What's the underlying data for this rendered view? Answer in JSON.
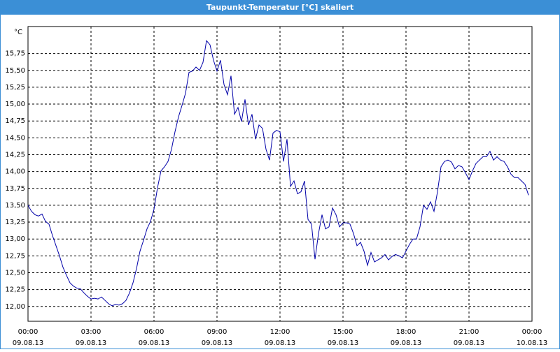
{
  "window_title": "Taupunkt-Temperatur [°C] skaliert",
  "chart_data": {
    "type": "line",
    "y_label": "°C",
    "color": "#0000a8",
    "grid": true,
    "xlim": [
      0,
      1440
    ],
    "ylim": [
      11.78,
      16.15
    ],
    "xticks": [
      {
        "value": 0,
        "label": "00:00",
        "date": "09.08.13"
      },
      {
        "value": 180,
        "label": "03:00",
        "date": "09.08.13"
      },
      {
        "value": 360,
        "label": "06:00",
        "date": "09.08.13"
      },
      {
        "value": 540,
        "label": "09:00",
        "date": "09.08.13"
      },
      {
        "value": 720,
        "label": "12:00",
        "date": "09.08.13"
      },
      {
        "value": 900,
        "label": "15:00",
        "date": "09.08.13"
      },
      {
        "value": 1080,
        "label": "18:00",
        "date": "09.08.13"
      },
      {
        "value": 1260,
        "label": "21:00",
        "date": "09.08.13"
      },
      {
        "value": 1440,
        "label": "00:00",
        "date": "10.08.13"
      }
    ],
    "yticks": [
      {
        "value": 12.0,
        "label": "12,00"
      },
      {
        "value": 12.25,
        "label": "12,25"
      },
      {
        "value": 12.5,
        "label": "12,50"
      },
      {
        "value": 12.75,
        "label": "12,75"
      },
      {
        "value": 13.0,
        "label": "13,00"
      },
      {
        "value": 13.25,
        "label": "13,25"
      },
      {
        "value": 13.5,
        "label": "13,50"
      },
      {
        "value": 13.75,
        "label": "13,75"
      },
      {
        "value": 14.0,
        "label": "14,00"
      },
      {
        "value": 14.25,
        "label": "14,25"
      },
      {
        "value": 14.5,
        "label": "14,50"
      },
      {
        "value": 14.75,
        "label": "14,75"
      },
      {
        "value": 15.0,
        "label": "15,00"
      },
      {
        "value": 15.25,
        "label": "15,25"
      },
      {
        "value": 15.5,
        "label": "15,50"
      },
      {
        "value": 15.75,
        "label": "15,75"
      }
    ],
    "x": [
      0,
      10,
      20,
      30,
      40,
      50,
      60,
      70,
      80,
      90,
      100,
      110,
      120,
      130,
      140,
      150,
      160,
      170,
      180,
      190,
      200,
      210,
      220,
      230,
      240,
      250,
      260,
      270,
      280,
      290,
      300,
      310,
      320,
      330,
      340,
      350,
      360,
      370,
      380,
      390,
      400,
      410,
      420,
      430,
      440,
      450,
      460,
      470,
      480,
      490,
      500,
      510,
      520,
      530,
      540,
      550,
      560,
      570,
      580,
      590,
      600,
      610,
      620,
      630,
      640,
      650,
      660,
      670,
      680,
      690,
      700,
      710,
      720,
      730,
      740,
      750,
      760,
      770,
      780,
      790,
      800,
      810,
      820,
      830,
      840,
      850,
      860,
      870,
      880,
      890,
      900,
      910,
      920,
      930,
      940,
      950,
      960,
      970,
      980,
      990,
      1000,
      1010,
      1020,
      1030,
      1040,
      1050,
      1060,
      1070,
      1080,
      1090,
      1100,
      1110,
      1120,
      1130,
      1140,
      1150,
      1160,
      1170,
      1180,
      1190,
      1200,
      1210,
      1220,
      1230,
      1240,
      1250,
      1260,
      1270,
      1280,
      1290,
      1300,
      1310,
      1320,
      1330,
      1340,
      1350,
      1360,
      1370,
      1380,
      1390,
      1400,
      1410,
      1420,
      1430
    ],
    "values": [
      13.5,
      13.41,
      13.36,
      13.34,
      13.37,
      13.26,
      13.22,
      13.05,
      12.9,
      12.75,
      12.58,
      12.46,
      12.35,
      12.3,
      12.27,
      12.26,
      12.2,
      12.15,
      12.11,
      12.12,
      12.11,
      12.14,
      12.09,
      12.04,
      12.01,
      12.03,
      12.02,
      12.04,
      12.09,
      12.2,
      12.35,
      12.56,
      12.82,
      12.98,
      13.15,
      13.26,
      13.44,
      13.76,
      14.01,
      14.07,
      14.15,
      14.33,
      14.59,
      14.81,
      14.98,
      15.16,
      15.47,
      15.49,
      15.55,
      15.5,
      15.62,
      15.94,
      15.88,
      15.65,
      15.49,
      15.65,
      15.29,
      15.14,
      15.42,
      14.85,
      14.95,
      14.74,
      15.07,
      14.69,
      14.85,
      14.48,
      14.69,
      14.64,
      14.33,
      14.17,
      14.57,
      14.61,
      14.59,
      14.15,
      14.48,
      13.78,
      13.86,
      13.67,
      13.7,
      13.86,
      13.29,
      13.22,
      12.7,
      13.08,
      13.36,
      13.15,
      13.18,
      13.46,
      13.36,
      13.18,
      13.24,
      13.24,
      13.22,
      13.08,
      12.9,
      12.95,
      12.82,
      12.61,
      12.8,
      12.66,
      12.69,
      12.72,
      12.77,
      12.69,
      12.74,
      12.77,
      12.75,
      12.72,
      12.82,
      12.92,
      13.0,
      13.0,
      13.18,
      13.5,
      13.44,
      13.55,
      13.41,
      13.7,
      14.07,
      14.15,
      14.17,
      14.14,
      14.04,
      14.09,
      14.07,
      13.98,
      13.88,
      14.01,
      14.12,
      14.17,
      14.22,
      14.22,
      14.3,
      14.17,
      14.22,
      14.17,
      14.15,
      14.07,
      13.96,
      13.91,
      13.91,
      13.86,
      13.81,
      13.65
    ]
  }
}
